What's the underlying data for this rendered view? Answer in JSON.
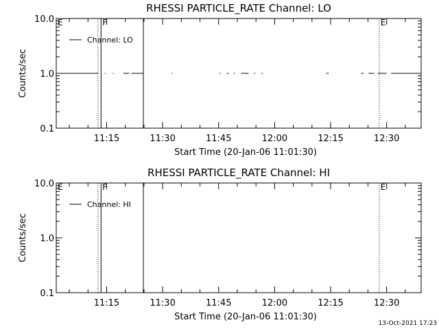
{
  "footer_timestamp": "13-Oct-2021 17:23",
  "chart_data": [
    {
      "type": "line",
      "title": "RHESSI PARTICLE_RATE Channel: LO",
      "xlabel": "Start Time (20-Jan-06 11:01:30)",
      "ylabel": "Counts/sec",
      "xlim": [
        "11:01:30",
        "12:39:15"
      ],
      "ylim": [
        0.1,
        10.0
      ],
      "yscale": "log",
      "xticks": [
        "11:15",
        "11:30",
        "11:45",
        "12:00",
        "12:15",
        "12:30"
      ],
      "yticks": [
        {
          "value": 0.1,
          "label": "0.1"
        },
        {
          "value": 1.0,
          "label": "1.0"
        },
        {
          "value": 10.0,
          "label": "10.0"
        }
      ],
      "legend": {
        "placement": "top-left",
        "entries": [
          "Channel: LO"
        ]
      },
      "series": [
        {
          "name": "Channel: LO",
          "segments": [
            {
              "x": [
                "11:01:30",
                "11:12:40"
              ],
              "y": 1.0
            },
            {
              "x": [
                "11:14:30",
                "11:14:45"
              ],
              "y": 1.0
            },
            {
              "x": [
                "11:16:40",
                "11:16:55"
              ],
              "y": 1.0
            },
            {
              "x": [
                "11:19:30",
                "11:21:00"
              ],
              "y": 1.0
            },
            {
              "x": [
                "11:21:40",
                "11:24:50"
              ],
              "y": 1.0
            },
            {
              "x": [
                "11:32:20",
                "11:32:35"
              ],
              "y": 1.0
            },
            {
              "x": [
                "11:45:10",
                "11:45:30"
              ],
              "y": 1.0
            },
            {
              "x": [
                "11:47:10",
                "11:47:40"
              ],
              "y": 1.0
            },
            {
              "x": [
                "11:49:00",
                "11:49:20"
              ],
              "y": 1.0
            },
            {
              "x": [
                "11:51:00",
                "11:53:00"
              ],
              "y": 1.0
            },
            {
              "x": [
                "11:54:30",
                "11:54:50"
              ],
              "y": 1.0
            },
            {
              "x": [
                "11:56:30",
                "11:56:50"
              ],
              "y": 1.0
            },
            {
              "x": [
                "12:13:50",
                "12:14:30"
              ],
              "y": 1.0
            },
            {
              "x": [
                "12:23:10",
                "12:23:50"
              ],
              "y": 1.0
            },
            {
              "x": [
                "12:25:10",
                "12:26:40"
              ],
              "y": 1.0
            },
            {
              "x": [
                "12:27:40",
                "12:30:00"
              ],
              "y": 1.0
            },
            {
              "x": [
                "12:31:10",
                "12:38:40"
              ],
              "y": 1.0
            }
          ]
        }
      ],
      "markers": [
        {
          "time": "11:01:30",
          "label": "E",
          "style": "solid"
        },
        {
          "time": "11:12:40",
          "label": "",
          "style": "dotted"
        },
        {
          "time": "11:13:30",
          "label": "F",
          "style": "solid"
        },
        {
          "time": "11:24:50",
          "label": "",
          "style": "solid"
        },
        {
          "time": "12:28:00",
          "label": "E",
          "style": "dotted"
        },
        {
          "time": "12:39:15",
          "label": "",
          "style": "dotted"
        }
      ]
    },
    {
      "type": "line",
      "title": "RHESSI PARTICLE_RATE Channel: HI",
      "xlabel": "Start Time (20-Jan-06 11:01:30)",
      "ylabel": "Counts/sec",
      "xlim": [
        "11:01:30",
        "12:39:15"
      ],
      "ylim": [
        0.1,
        10.0
      ],
      "yscale": "log",
      "xticks": [
        "11:15",
        "11:30",
        "11:45",
        "12:00",
        "12:15",
        "12:30"
      ],
      "yticks": [
        {
          "value": 0.1,
          "label": "0.1"
        },
        {
          "value": 1.0,
          "label": "1.0"
        },
        {
          "value": 10.0,
          "label": "10.0"
        }
      ],
      "legend": {
        "placement": "top-left",
        "entries": [
          "Channel: HI"
        ]
      },
      "series": [
        {
          "name": "Channel: HI",
          "segments": []
        }
      ],
      "markers": [
        {
          "time": "11:01:30",
          "label": "E",
          "style": "solid"
        },
        {
          "time": "11:12:40",
          "label": "",
          "style": "dotted"
        },
        {
          "time": "11:13:30",
          "label": "F",
          "style": "solid"
        },
        {
          "time": "11:24:50",
          "label": "",
          "style": "solid"
        },
        {
          "time": "12:28:00",
          "label": "E",
          "style": "dotted"
        },
        {
          "time": "12:39:15",
          "label": "",
          "style": "dotted"
        }
      ]
    }
  ]
}
